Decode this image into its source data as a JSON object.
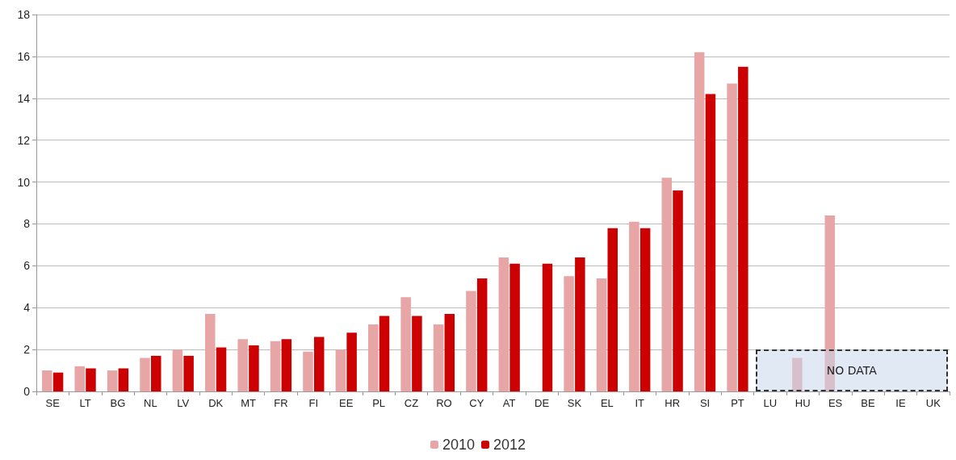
{
  "chart_data": {
    "type": "bar",
    "categories": [
      "SE",
      "LT",
      "BG",
      "NL",
      "LV",
      "DK",
      "MT",
      "FR",
      "FI",
      "EE",
      "PL",
      "CZ",
      "RO",
      "CY",
      "AT",
      "DE",
      "SK",
      "EL",
      "IT",
      "HR",
      "SI",
      "PT",
      "LU",
      "HU",
      "ES",
      "BE",
      "IE",
      "UK"
    ],
    "series": [
      {
        "name": "2010",
        "color": "#e8a5a5",
        "values": [
          1.0,
          1.2,
          1.0,
          1.6,
          2.0,
          3.7,
          2.5,
          2.4,
          1.9,
          2.0,
          3.2,
          4.5,
          3.2,
          4.8,
          6.4,
          null,
          5.5,
          5.4,
          8.1,
          10.2,
          16.2,
          14.7,
          null,
          1.6,
          8.4,
          null,
          null,
          null
        ]
      },
      {
        "name": "2012",
        "color": "#cc0000",
        "values": [
          0.9,
          1.1,
          1.1,
          1.7,
          1.7,
          2.1,
          2.2,
          2.5,
          2.6,
          2.8,
          3.6,
          3.6,
          3.7,
          5.4,
          6.1,
          6.1,
          6.4,
          7.8,
          7.8,
          9.6,
          14.2,
          15.5,
          null,
          null,
          null,
          null,
          null,
          null
        ]
      }
    ],
    "ylim": [
      0,
      18
    ],
    "yticks": [
      0,
      2,
      4,
      6,
      8,
      10,
      12,
      14,
      16,
      18
    ],
    "grid": "y",
    "legend": "bottom",
    "annotations": [
      "NO DATA"
    ]
  }
}
